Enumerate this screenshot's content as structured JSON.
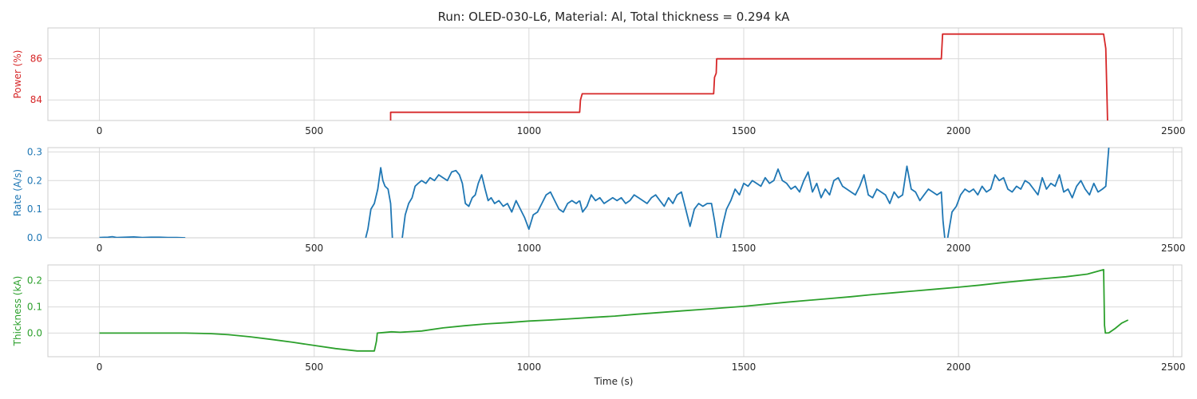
{
  "chart_data": {
    "title": "Run: OLED-030-L6, Material: Al, Total thickness = 0.294 kA",
    "xlabel": "Time (s)",
    "xlim": [
      -120,
      2520
    ],
    "xticks": [
      0,
      500,
      1000,
      1500,
      2000,
      2500
    ],
    "grid": true,
    "panels": [
      {
        "type": "line",
        "ylabel": "Power (%)",
        "color": "#d62728",
        "ylim": [
          83.0,
          87.5
        ],
        "yticks": [
          84,
          86
        ],
        "series": [
          {
            "x": [
              678,
              678,
              1118,
              1120,
              1124,
              1430,
              1432,
              1436,
              1437,
              1960,
              1963,
              2338,
              2343,
              2346,
              2347
            ],
            "y": [
              83.0,
              83.4,
              83.4,
              84.0,
              84.3,
              84.3,
              85.1,
              85.3,
              86.0,
              86.0,
              87.2,
              87.2,
              86.5,
              84.0,
              83.0
            ]
          }
        ]
      },
      {
        "type": "line",
        "ylabel": "Rate (A/s)",
        "color": "#1f77b4",
        "ylim": [
          0.0,
          0.315
        ],
        "yticks": [
          0.0,
          0.1,
          0.2,
          0.3
        ],
        "series": [
          {
            "x": [
              0,
              20,
              30,
              40,
              60,
              80,
              100,
              120,
              140,
              160,
              180,
              200
            ],
            "y": [
              0.001,
              0.002,
              0.004,
              0.001,
              0.002,
              0.003,
              0.001,
              0.002,
              0.002,
              0.001,
              0.001,
              0.0
            ]
          },
          {
            "x": [
              620,
              625,
              632,
              640,
              648,
              655,
              660,
              665,
              672,
              678,
              682
            ],
            "y": [
              0.0,
              0.03,
              0.1,
              0.12,
              0.17,
              0.245,
              0.2,
              0.18,
              0.17,
              0.12,
              0.0
            ]
          },
          {
            "x": [
              705,
              712,
              720,
              728,
              735,
              742,
              750,
              760,
              770,
              780,
              790,
              800,
              810,
              820,
              830,
              838,
              845,
              852,
              860,
              868,
              875,
              882,
              890,
              898,
              905,
              912,
              920,
              930,
              940,
              950,
              960,
              970,
              980,
              990,
              1000,
              1010,
              1020,
              1030,
              1040,
              1050,
              1060,
              1070,
              1080,
              1090,
              1100,
              1110,
              1118
            ],
            "y": [
              0.0,
              0.08,
              0.12,
              0.14,
              0.18,
              0.19,
              0.2,
              0.19,
              0.21,
              0.2,
              0.22,
              0.21,
              0.2,
              0.23,
              0.235,
              0.22,
              0.19,
              0.12,
              0.11,
              0.14,
              0.15,
              0.19,
              0.22,
              0.17,
              0.13,
              0.14,
              0.12,
              0.13,
              0.11,
              0.12,
              0.09,
              0.13,
              0.1,
              0.07,
              0.03,
              0.08,
              0.09,
              0.12,
              0.15,
              0.16,
              0.13,
              0.1,
              0.09,
              0.12,
              0.13,
              0.12,
              0.13
            ]
          },
          {
            "x": [
              1118,
              1125,
              1135,
              1145,
              1155,
              1165,
              1175,
              1185,
              1195,
              1205,
              1215,
              1225,
              1235,
              1245,
              1255,
              1265,
              1275,
              1285,
              1295,
              1305,
              1315,
              1325,
              1335,
              1345,
              1355,
              1365,
              1375,
              1385,
              1395,
              1405,
              1415,
              1425,
              1432,
              1438,
              1442
            ],
            "y": [
              0.13,
              0.09,
              0.11,
              0.15,
              0.13,
              0.14,
              0.12,
              0.13,
              0.14,
              0.13,
              0.14,
              0.12,
              0.13,
              0.15,
              0.14,
              0.13,
              0.12,
              0.14,
              0.15,
              0.13,
              0.11,
              0.14,
              0.12,
              0.15,
              0.16,
              0.1,
              0.04,
              0.1,
              0.12,
              0.11,
              0.12,
              0.12,
              0.06,
              0.0,
              0.0
            ]
          },
          {
            "x": [
              1445,
              1452,
              1460,
              1470,
              1480,
              1490,
              1500,
              1510,
              1520,
              1530,
              1540,
              1550,
              1560,
              1570,
              1580,
              1590,
              1600,
              1610,
              1620,
              1630,
              1640,
              1650,
              1660,
              1670,
              1680,
              1690,
              1700,
              1710,
              1720,
              1730,
              1740,
              1750,
              1760,
              1770,
              1780,
              1790,
              1800,
              1810,
              1820,
              1830,
              1840,
              1850,
              1860,
              1870,
              1880,
              1890,
              1900,
              1910,
              1920,
              1930,
              1940,
              1950,
              1960,
              1964,
              1968
            ],
            "y": [
              0.0,
              0.05,
              0.1,
              0.13,
              0.17,
              0.15,
              0.19,
              0.18,
              0.2,
              0.19,
              0.18,
              0.21,
              0.19,
              0.2,
              0.24,
              0.2,
              0.19,
              0.17,
              0.18,
              0.16,
              0.2,
              0.23,
              0.16,
              0.19,
              0.14,
              0.17,
              0.15,
              0.2,
              0.21,
              0.18,
              0.17,
              0.16,
              0.15,
              0.18,
              0.22,
              0.15,
              0.14,
              0.17,
              0.16,
              0.15,
              0.12,
              0.16,
              0.14,
              0.15,
              0.25,
              0.17,
              0.16,
              0.13,
              0.15,
              0.17,
              0.16,
              0.15,
              0.16,
              0.06,
              0.0
            ]
          },
          {
            "x": [
              1975,
              1985,
              1995,
              2005,
              2015,
              2025,
              2035,
              2045,
              2055,
              2065,
              2075,
              2085,
              2095,
              2105,
              2115,
              2125,
              2135,
              2145,
              2155,
              2165,
              2175,
              2185,
              2195,
              2205,
              2215,
              2225,
              2235,
              2245,
              2255,
              2265,
              2275,
              2285,
              2295,
              2305,
              2315,
              2325,
              2335,
              2343,
              2347,
              2350
            ],
            "y": [
              0.0,
              0.09,
              0.11,
              0.15,
              0.17,
              0.16,
              0.17,
              0.15,
              0.18,
              0.16,
              0.17,
              0.22,
              0.2,
              0.21,
              0.17,
              0.16,
              0.18,
              0.17,
              0.2,
              0.19,
              0.17,
              0.15,
              0.21,
              0.17,
              0.19,
              0.18,
              0.22,
              0.16,
              0.17,
              0.14,
              0.18,
              0.2,
              0.17,
              0.15,
              0.19,
              0.16,
              0.17,
              0.18,
              0.26,
              0.315
            ]
          }
        ]
      },
      {
        "type": "line",
        "ylabel": "Thickness (kA)",
        "color": "#2ca02c",
        "ylim": [
          -0.09,
          0.26
        ],
        "yticks": [
          0.0,
          0.1,
          0.2
        ],
        "series": [
          {
            "x": [
              0,
              100,
              200,
              260,
              300,
              350,
              400,
              450,
              500,
              550,
              600,
              640,
              645,
              647,
              660,
              680,
              700,
              750,
              800,
              850,
              900,
              950,
              1000,
              1050,
              1100,
              1150,
              1200,
              1250,
              1300,
              1350,
              1400,
              1450,
              1500,
              1550,
              1600,
              1650,
              1700,
              1750,
              1800,
              1850,
              1900,
              1950,
              2000,
              2050,
              2100,
              2150,
              2200,
              2250,
              2300,
              2338,
              2340,
              2342,
              2350,
              2365,
              2380,
              2395
            ],
            "y": [
              0.0,
              0.0,
              0.0,
              -0.002,
              -0.006,
              -0.014,
              -0.024,
              -0.035,
              -0.047,
              -0.059,
              -0.068,
              -0.068,
              -0.03,
              0.0,
              0.002,
              0.005,
              0.003,
              0.008,
              0.02,
              0.028,
              0.035,
              0.04,
              0.046,
              0.05,
              0.055,
              0.06,
              0.065,
              0.072,
              0.078,
              0.084,
              0.09,
              0.096,
              0.102,
              0.11,
              0.118,
              0.125,
              0.132,
              0.139,
              0.147,
              0.154,
              0.161,
              0.168,
              0.175,
              0.183,
              0.192,
              0.2,
              0.208,
              0.215,
              0.225,
              0.242,
              0.03,
              0.0,
              0.001,
              0.018,
              0.038,
              0.05
            ]
          }
        ]
      }
    ]
  }
}
